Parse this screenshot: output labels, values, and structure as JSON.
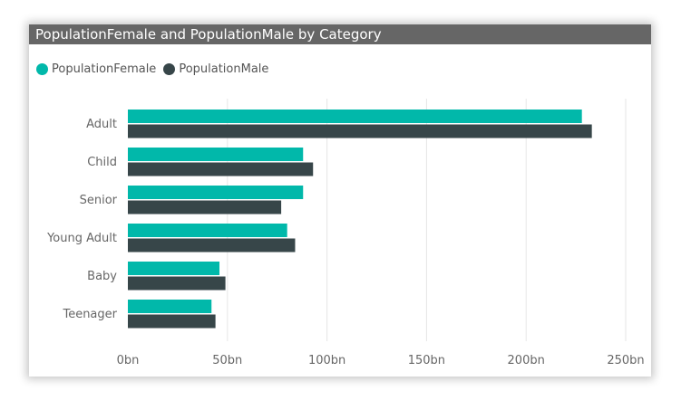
{
  "chart_data": {
    "type": "bar",
    "orientation": "horizontal",
    "title": "PopulationFemale and PopulationMale by Category",
    "categories": [
      "Adult",
      "Child",
      "Senior",
      "Young Adult",
      "Baby",
      "Teenager"
    ],
    "series": [
      {
        "name": "PopulationFemale",
        "color": "#01b8aa",
        "values": [
          228,
          88,
          88,
          80,
          46,
          42
        ]
      },
      {
        "name": "PopulationMale",
        "color": "#374649",
        "values": [
          233,
          93,
          77,
          84,
          49,
          44
        ]
      }
    ],
    "xlim": [
      0,
      250
    ],
    "x_ticks": [
      "0bn",
      "50bn",
      "100bn",
      "150bn",
      "200bn",
      "250bn"
    ],
    "x_tick_values": [
      0,
      50,
      100,
      150,
      200,
      250
    ],
    "grid": true,
    "legend_position": "top-left"
  }
}
